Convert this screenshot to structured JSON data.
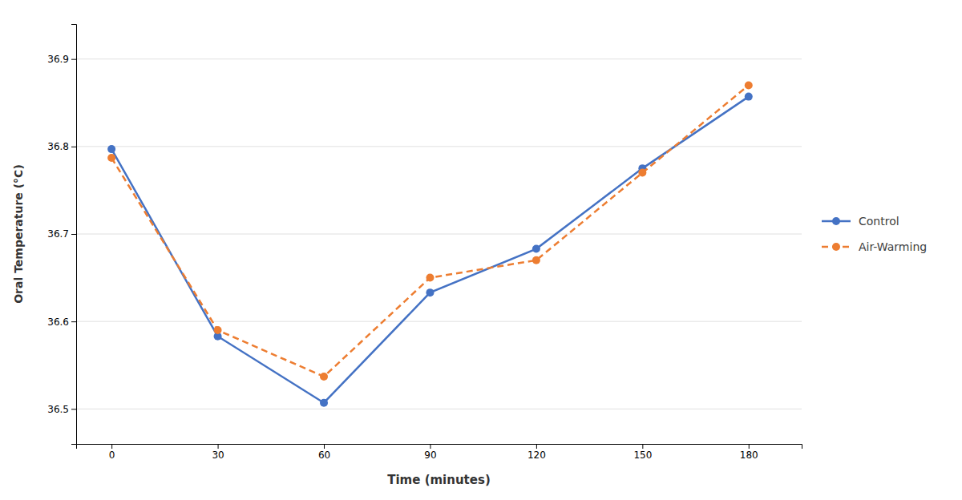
{
  "chart_data": {
    "type": "line",
    "xlabel": "Time (minutes)",
    "ylabel": "Oral Temperature (°C)",
    "x": [
      0,
      30,
      60,
      90,
      120,
      150,
      180
    ],
    "series": [
      {
        "name": "Control",
        "color": "#4472C4",
        "line_style": "solid",
        "marker": "circle",
        "values": [
          36.797,
          36.583,
          36.507,
          36.633,
          36.683,
          36.775,
          36.857
        ]
      },
      {
        "name": "Air-Warming",
        "color": "#ED7D31",
        "line_style": "dashed",
        "marker": "circle",
        "values": [
          36.787,
          36.59,
          36.537,
          36.65,
          36.67,
          36.77,
          36.87
        ]
      }
    ],
    "xlim": [
      -10,
      195
    ],
    "xticks": [
      0,
      30,
      60,
      90,
      120,
      150,
      180
    ],
    "ylim": [
      36.46,
      36.94
    ],
    "yticks": [
      36.5,
      36.6,
      36.7,
      36.8,
      36.9
    ],
    "grid": "y",
    "legend": "right"
  }
}
